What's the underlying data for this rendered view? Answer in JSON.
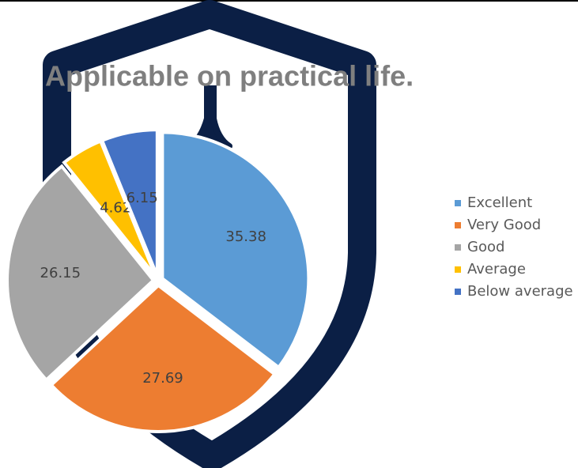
{
  "chart_data": {
    "type": "pie",
    "title": "Applicable on practical life.",
    "categories": [
      "Excellent",
      "Very Good",
      "Good",
      "Average",
      "Below average"
    ],
    "values": [
      35.38,
      27.69,
      26.15,
      4.62,
      6.15
    ],
    "colors": [
      "#5b9bd5",
      "#ed7d31",
      "#a5a5a5",
      "#ffc000",
      "#4472c4"
    ]
  }
}
